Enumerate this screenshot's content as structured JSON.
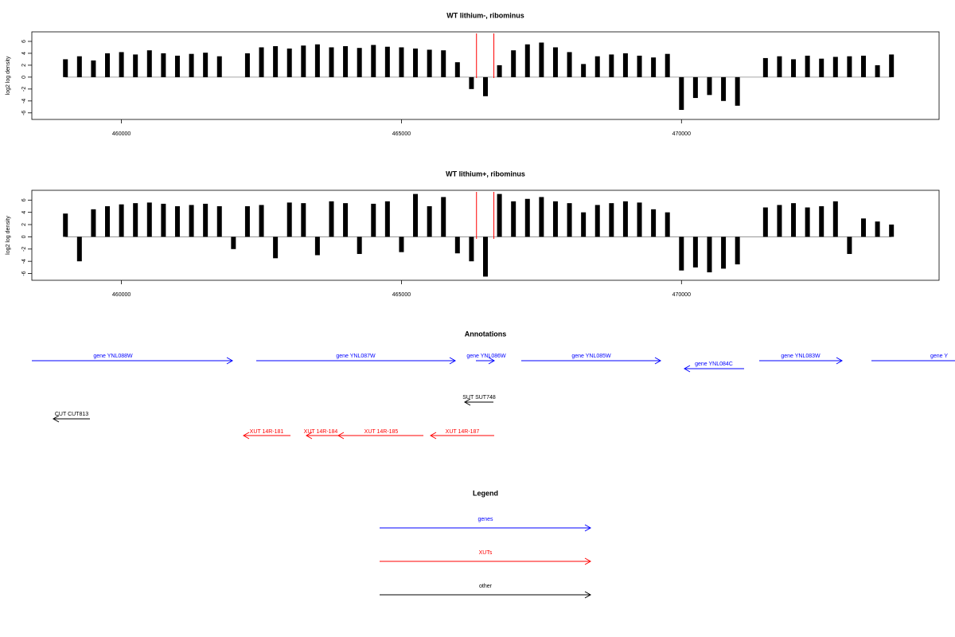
{
  "chart_data": [
    {
      "type": "bar",
      "title": "WT lithium-, ribominus",
      "ylabel": "log2 log density",
      "color": "#000000",
      "xlim": [
        458400,
        474600
      ],
      "xticks": [
        460000,
        465000,
        470000
      ],
      "ylim": [
        -7.1,
        7.6
      ],
      "yticks": [
        -6,
        -4,
        -2,
        0,
        2,
        4,
        6
      ],
      "vlines": [
        466340,
        466650
      ],
      "vline_color": "#ff0000",
      "x": [
        459000,
        459250,
        459500,
        459750,
        460000,
        460250,
        460500,
        460750,
        461000,
        461250,
        461500,
        461750,
        462000,
        462250,
        462500,
        462750,
        463000,
        463250,
        463500,
        463750,
        464000,
        464250,
        464500,
        464750,
        465000,
        465250,
        465500,
        465750,
        466000,
        466250,
        466500,
        466750,
        467000,
        467250,
        467500,
        467750,
        468000,
        468250,
        468500,
        468750,
        469000,
        469250,
        469500,
        469750,
        470000,
        470250,
        470500,
        470750,
        471000,
        471250,
        471500,
        471750,
        472000,
        472250,
        472500,
        472750,
        473000,
        473250,
        473500,
        473750
      ],
      "values": [
        3,
        3.5,
        2.8,
        4,
        4.2,
        3.8,
        4.5,
        4,
        3.6,
        3.9,
        4.1,
        3.5,
        0,
        4,
        5,
        5.2,
        4.8,
        5.3,
        5.5,
        5,
        5.2,
        4.9,
        5.4,
        5.1,
        5,
        4.8,
        4.6,
        4.5,
        2.5,
        -2,
        -3.2,
        2,
        4.5,
        5.5,
        5.8,
        5,
        4.2,
        2.2,
        3.5,
        3.8,
        4,
        3.6,
        3.3,
        3.9,
        -5.5,
        -3.5,
        -3,
        -4,
        -4.8,
        0,
        3.2,
        3.5,
        3,
        3.6,
        3.1,
        3.4,
        3.5,
        3.6,
        2,
        3.8
      ]
    },
    {
      "type": "bar",
      "title": "WT lithium+, ribominus",
      "ylabel": "log2 log density",
      "color": "#000000",
      "xlim": [
        458400,
        474600
      ],
      "xticks": [
        460000,
        465000,
        470000
      ],
      "ylim": [
        -7.1,
        7.6
      ],
      "yticks": [
        -6,
        -4,
        -2,
        0,
        2,
        4,
        6
      ],
      "vlines": [
        466340,
        466650
      ],
      "vline_color": "#ff0000",
      "x": [
        459000,
        459250,
        459500,
        459750,
        460000,
        460250,
        460500,
        460750,
        461000,
        461250,
        461500,
        461750,
        462000,
        462250,
        462500,
        462750,
        463000,
        463250,
        463500,
        463750,
        464000,
        464250,
        464500,
        464750,
        465000,
        465250,
        465500,
        465750,
        466000,
        466250,
        466500,
        466750,
        467000,
        467250,
        467500,
        467750,
        468000,
        468250,
        468500,
        468750,
        469000,
        469250,
        469500,
        469750,
        470000,
        470250,
        470500,
        470750,
        471000,
        471250,
        471500,
        471750,
        472000,
        472250,
        472500,
        472750,
        473000,
        473250,
        473500,
        473750
      ],
      "values": [
        3.8,
        -4,
        4.5,
        5,
        5.3,
        5.5,
        5.6,
        5.4,
        5,
        5.2,
        5.4,
        5,
        -2,
        5,
        5.2,
        -3.5,
        5.6,
        5.5,
        -3,
        5.8,
        5.5,
        -2.8,
        5.4,
        5.8,
        -2.5,
        7,
        5,
        6.5,
        -2.7,
        -4,
        -6.5,
        7,
        5.8,
        6.2,
        6.5,
        5.8,
        5.5,
        4,
        5.2,
        5.5,
        5.8,
        5.6,
        4.5,
        4,
        -5.5,
        -5,
        -5.8,
        -5.2,
        -4.5,
        0,
        4.8,
        5.2,
        5.5,
        4.8,
        5,
        5.8,
        -2.8,
        3,
        2.5,
        2
      ]
    }
  ],
  "annotations": {
    "title": "Annotations",
    "genes": [
      "gene YNL088W",
      "gene YNL087W",
      "gene YNL086W",
      "gene YNL085W",
      "gene YNL084C",
      "gene YNL083W",
      "gene Y"
    ],
    "other": [
      "SUT SUT748",
      "CUT CUT813"
    ],
    "xuts": [
      "XUT 14R-181",
      "XUT 14R-184",
      "XUT 14R-185",
      "XUT 14R-187"
    ]
  },
  "legend": {
    "title": "Legend",
    "items": [
      {
        "label": "genes",
        "color": "#0000ff"
      },
      {
        "label": "XUTs",
        "color": "#ff0000"
      },
      {
        "label": "other",
        "color": "#000000"
      }
    ]
  }
}
